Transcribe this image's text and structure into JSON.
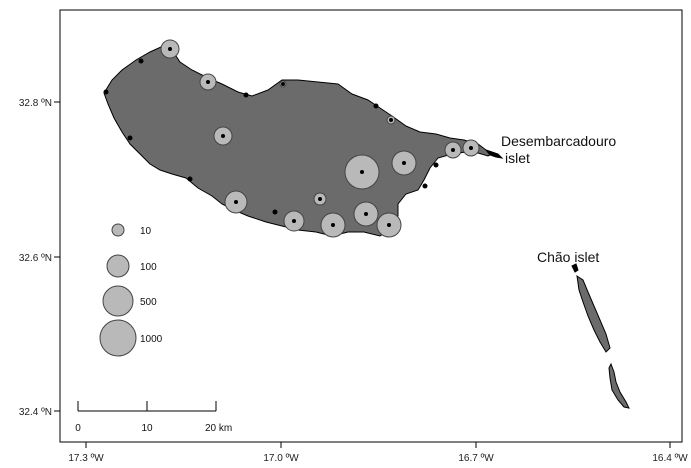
{
  "map": {
    "x_ticks": [
      "17.3 ºW",
      "17.0 ºW",
      "16.7 ºW",
      "16.4 ºW"
    ],
    "y_ticks": [
      "32.8 ºN",
      "32.6 ºN",
      "32.4 ºN"
    ],
    "places": {
      "desembarcadouro_line1": "Desembarcadouro",
      "desembarcadouro_line2": "islet",
      "chao": "Chão islet"
    },
    "legend": [
      "10",
      "100",
      "500",
      "1000"
    ],
    "scale_bar": [
      "0",
      "10",
      "20 km"
    ],
    "land_color": "#6b6b6b",
    "bubble_color": "#b9b9b9",
    "site_color": "#000000"
  }
}
